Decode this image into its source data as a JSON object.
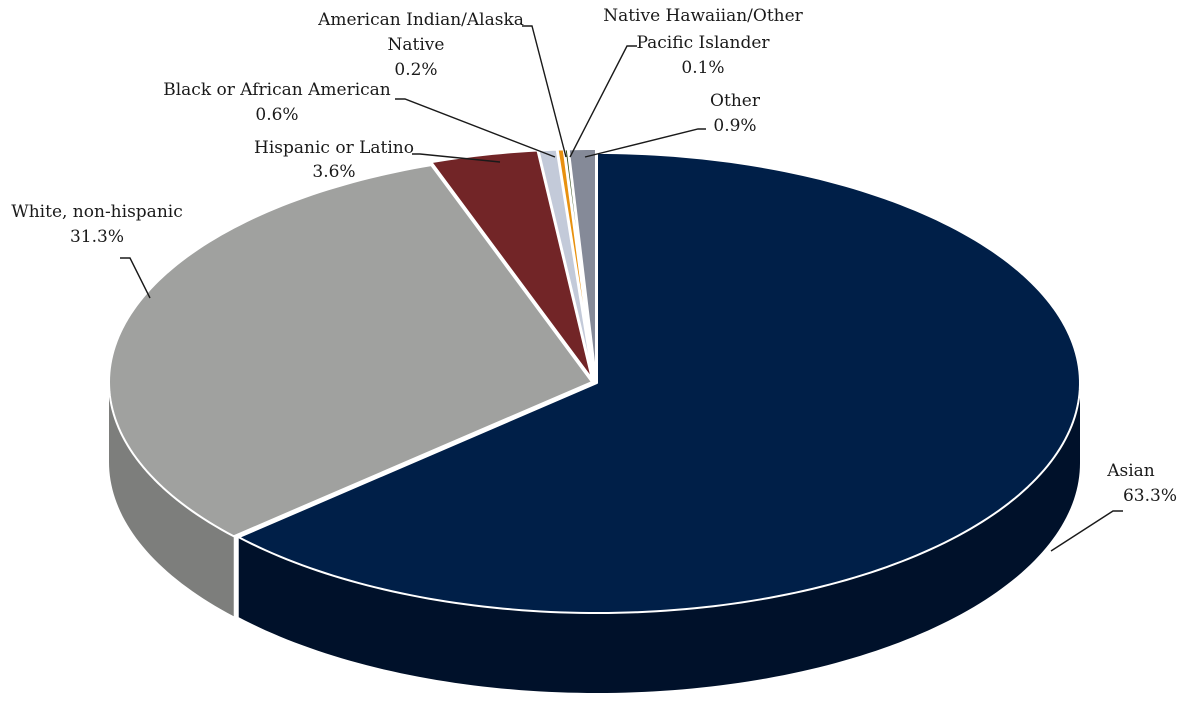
{
  "chart_data": {
    "type": "pie",
    "style": "3d-exploded",
    "title": "",
    "start_angle": "12 o'clock, clockwise",
    "slices": [
      {
        "label": "Asian",
        "value": 63.3,
        "value_label": "63.3%",
        "color": "#001f48",
        "side_color": "#00112a"
      },
      {
        "label": "White, non-hispanic",
        "value": 31.3,
        "value_label": "31.3%",
        "color": "#a0a19f",
        "side_color": "#7d7e7c"
      },
      {
        "label": "Hispanic or Latino",
        "value": 3.6,
        "value_label": "3.6%",
        "color": "#722527",
        "side_color": "#4e1719"
      },
      {
        "label": "Black or African American",
        "value": 0.6,
        "value_label": "0.6%",
        "color": "#c3cad9",
        "side_color": "#9aa1b0"
      },
      {
        "label": "American Indian/Alaska Native",
        "value": 0.2,
        "value_label": "0.2%",
        "color": "#e8910f",
        "side_color": "#b06c08"
      },
      {
        "label": "Native Hawaiian/Other Pacific Islander",
        "value": 0.1,
        "value_label": "0.1%",
        "color": "#304a12",
        "side_color": "#1f300b"
      },
      {
        "label": "Other",
        "value": 0.9,
        "value_label": "0.9%",
        "color": "#858a98",
        "side_color": "#60646f"
      }
    ]
  }
}
